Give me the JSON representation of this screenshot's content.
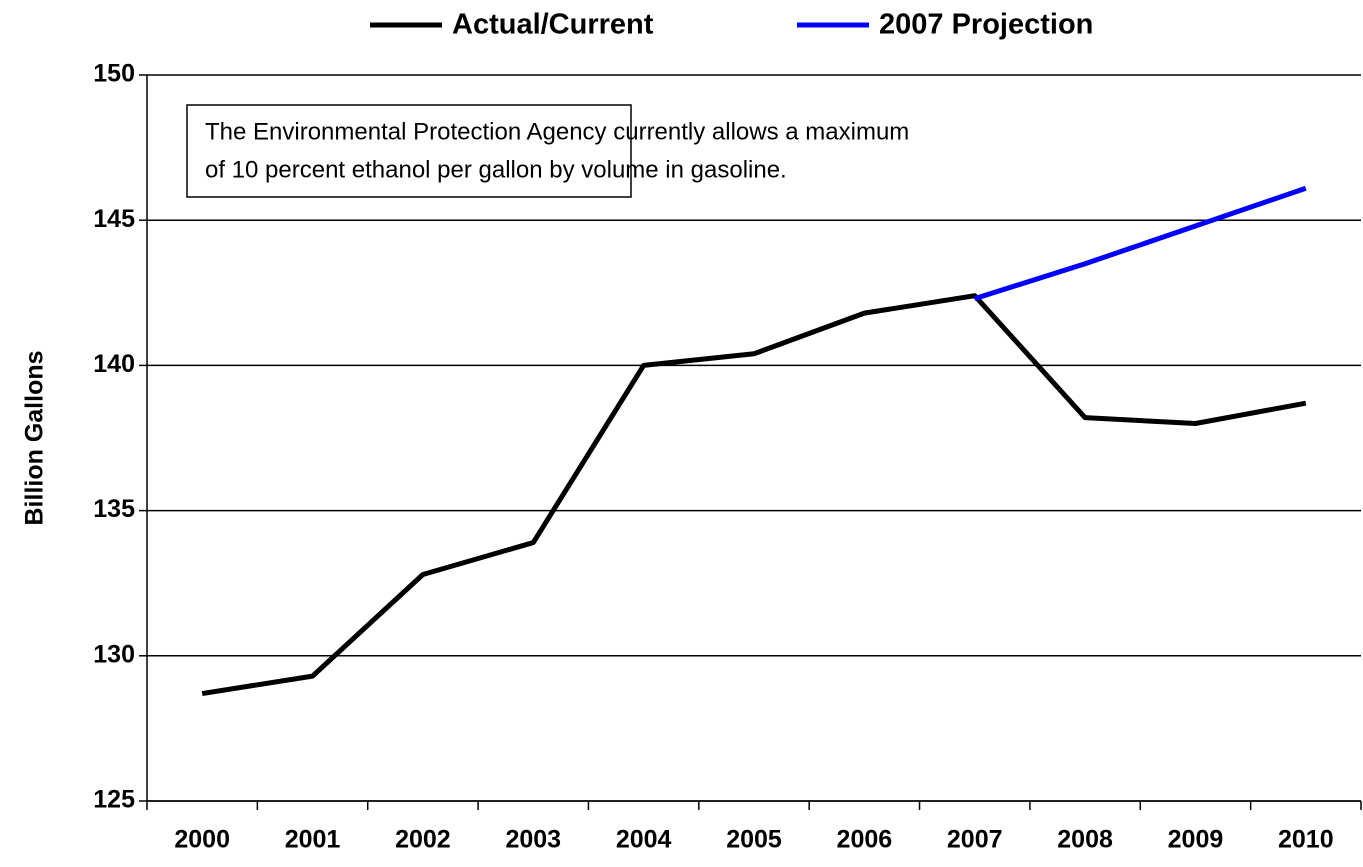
{
  "chart_data": {
    "type": "line",
    "y_label": "Billion Gallons",
    "annotation": [
      "The Environmental Protection Agency currently allows a maximum",
      "of 10 percent ethanol per gallon by volume in gasoline."
    ],
    "categories": [
      "2000",
      "2001",
      "2002",
      "2003",
      "2004",
      "2005",
      "2006",
      "2007",
      "2008",
      "2009",
      "2010"
    ],
    "series": [
      {
        "name": "Actual/Current",
        "color": "#000000",
        "values": [
          128.7,
          129.3,
          132.8,
          133.9,
          140.0,
          140.4,
          141.8,
          142.4,
          138.2,
          138.0,
          138.7
        ]
      },
      {
        "name": "2007 Projection",
        "color": "#0000ff",
        "values": [
          null,
          null,
          null,
          null,
          null,
          null,
          null,
          142.3,
          143.5,
          144.8,
          146.1
        ]
      }
    ],
    "ylim": [
      125,
      150
    ],
    "yticks": [
      125,
      130,
      135,
      140,
      145,
      150
    ],
    "grid": true,
    "legend": "top"
  }
}
